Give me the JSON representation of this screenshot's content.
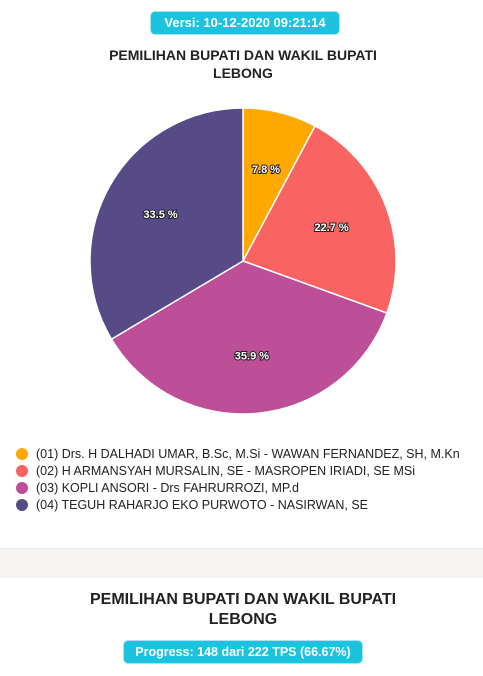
{
  "header": {
    "version": "Versi: 10-12-2020 09:21:14"
  },
  "chart_data": {
    "type": "pie",
    "title_line1": "PEMILIHAN BUPATI DAN WAKIL BUPATI",
    "title_line2": "LEBONG",
    "slices": [
      {
        "name": "(01) Drs. H DALHADI UMAR, B.Sc, M.Si - WAWAN FERNANDEZ, SH, M.Kn",
        "value": 7.8,
        "label": "7.8 %",
        "color": "#ffa800"
      },
      {
        "name": "(02) H ARMANSYAH MURSALIN, SE - MASROPEN IRIADI, SE MSi",
        "value": 22.7,
        "label": "22.7 %",
        "color": "#f96462"
      },
      {
        "name": "(03) KOPLI ANSORI - Drs FAHRURROZI, MP.d",
        "value": 35.9,
        "label": "35.9 %",
        "color": "#bd4f98"
      },
      {
        "name": "(04) TEGUH RAHARJO EKO PURWOTO - NASIRWAN, SE",
        "value": 33.5,
        "label": "33.5 %",
        "color": "#574b87"
      }
    ],
    "legend_position": "bottom-left"
  },
  "footer": {
    "title_line1": "PEMILIHAN BUPATI DAN WAKIL BUPATI",
    "title_line2": "LEBONG",
    "progress": "Progress: 148 dari 222 TPS (66.67%)"
  }
}
